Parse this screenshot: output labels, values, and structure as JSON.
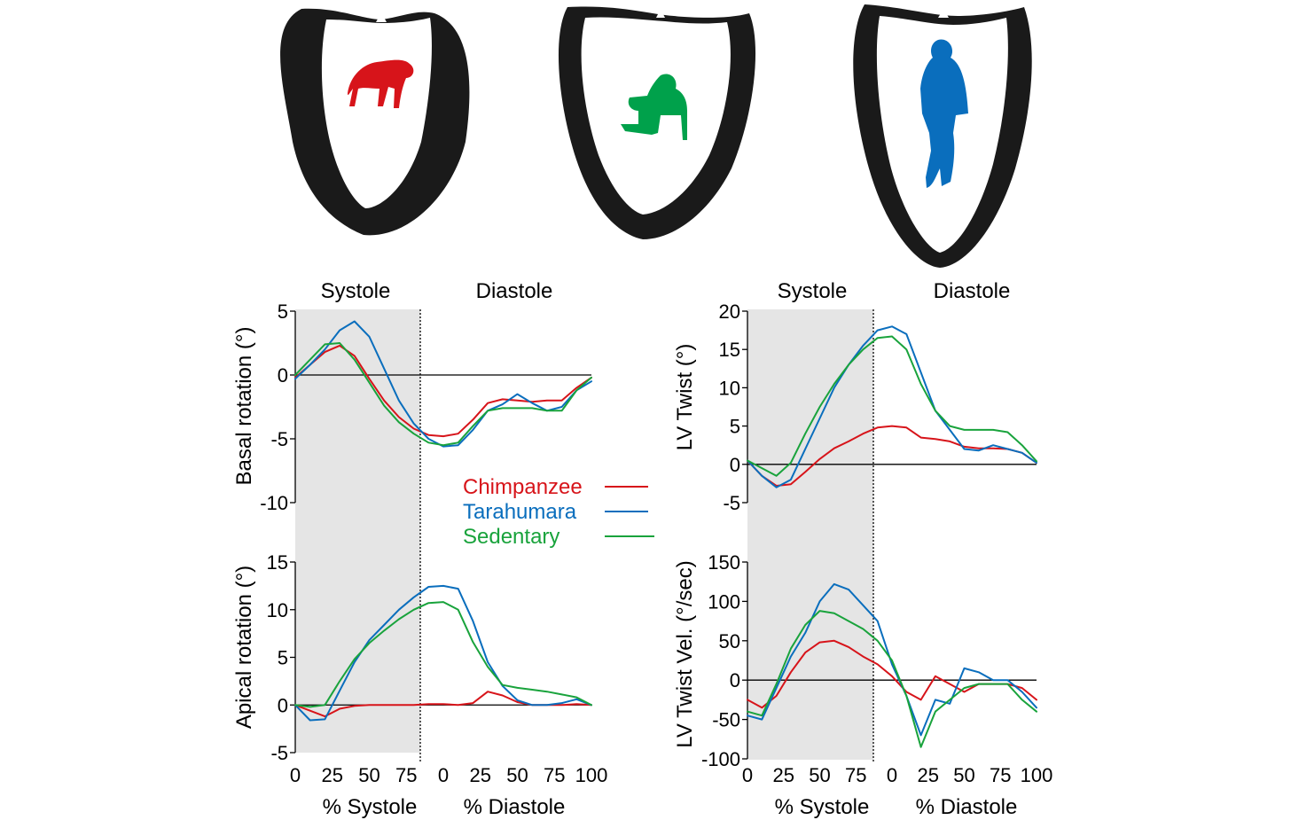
{
  "phases": {
    "systole": "Systole",
    "diastole": "Diastole"
  },
  "figures": [
    {
      "name": "chimpanzee-figure",
      "color": "#d7141a"
    },
    {
      "name": "sitting-person-figure",
      "color": "#00a14b"
    },
    {
      "name": "standing-runner-figure",
      "color": "#0a6ebd"
    }
  ],
  "legend": [
    {
      "label": "Chimpanzee",
      "color": "#d7141a"
    },
    {
      "label": "Tarahumara",
      "color": "#0a6ebd"
    },
    {
      "label": "Sedentary",
      "color": "#19a33c"
    }
  ],
  "x_axis": {
    "ticks_systole": [
      "0",
      "25",
      "50",
      "75"
    ],
    "ticks_diastole": [
      "0",
      "25",
      "50",
      "75",
      "100"
    ],
    "label_systole": "% Systole",
    "label_diastole": "% Diastole"
  },
  "chart_data": [
    {
      "type": "line",
      "ylabel": "Basal rotation (°)",
      "ylim": [
        -10,
        5
      ],
      "yticks": [
        "5",
        "0",
        "-5",
        "-10"
      ],
      "x": "0-100 % systole then 0-100 % diastole",
      "series": [
        {
          "name": "Chimpanzee",
          "points": [
            [
              0,
              -0.2
            ],
            [
              10,
              0.8
            ],
            [
              20,
              1.8
            ],
            [
              30,
              2.3
            ],
            [
              40,
              1.5
            ],
            [
              50,
              -0.3
            ],
            [
              60,
              -2.0
            ],
            [
              70,
              -3.3
            ],
            [
              80,
              -4.2
            ],
            [
              90,
              -4.7
            ],
            [
              100,
              -4.8
            ],
            [
              110,
              -4.6
            ],
            [
              120,
              -3.5
            ],
            [
              130,
              -2.2
            ],
            [
              140,
              -1.9
            ],
            [
              150,
              -2.0
            ],
            [
              160,
              -2.1
            ],
            [
              170,
              -2.0
            ],
            [
              180,
              -2.0
            ],
            [
              190,
              -1.0
            ],
            [
              200,
              -0.2
            ]
          ]
        },
        {
          "name": "Tarahumara",
          "points": [
            [
              0,
              -0.3
            ],
            [
              10,
              0.8
            ],
            [
              20,
              2.0
            ],
            [
              30,
              3.5
            ],
            [
              40,
              4.2
            ],
            [
              50,
              3.0
            ],
            [
              60,
              0.5
            ],
            [
              70,
              -2.0
            ],
            [
              80,
              -3.8
            ],
            [
              90,
              -5.0
            ],
            [
              100,
              -5.6
            ],
            [
              110,
              -5.5
            ],
            [
              120,
              -4.3
            ],
            [
              130,
              -2.8
            ],
            [
              140,
              -2.3
            ],
            [
              150,
              -1.5
            ],
            [
              160,
              -2.2
            ],
            [
              170,
              -2.8
            ],
            [
              180,
              -2.5
            ],
            [
              190,
              -1.2
            ],
            [
              200,
              -0.5
            ]
          ]
        },
        {
          "name": "Sedentary",
          "points": [
            [
              0,
              0
            ],
            [
              10,
              1.2
            ],
            [
              20,
              2.4
            ],
            [
              30,
              2.5
            ],
            [
              40,
              1.2
            ],
            [
              50,
              -0.6
            ],
            [
              60,
              -2.4
            ],
            [
              70,
              -3.7
            ],
            [
              80,
              -4.6
            ],
            [
              90,
              -5.3
            ],
            [
              100,
              -5.5
            ],
            [
              110,
              -5.3
            ],
            [
              120,
              -4.0
            ],
            [
              130,
              -2.8
            ],
            [
              140,
              -2.6
            ],
            [
              150,
              -2.6
            ],
            [
              160,
              -2.6
            ],
            [
              170,
              -2.8
            ],
            [
              180,
              -2.8
            ],
            [
              190,
              -1.2
            ],
            [
              200,
              -0.2
            ]
          ]
        }
      ]
    },
    {
      "type": "line",
      "ylabel": "Apical rotation (°)",
      "ylim": [
        -5,
        15
      ],
      "yticks": [
        "15",
        "10",
        "5",
        "0",
        "-5"
      ],
      "series": [
        {
          "name": "Chimpanzee",
          "points": [
            [
              0,
              0
            ],
            [
              10,
              -0.6
            ],
            [
              20,
              -1.2
            ],
            [
              30,
              -0.4
            ],
            [
              40,
              -0.1
            ],
            [
              50,
              0
            ],
            [
              60,
              0
            ],
            [
              70,
              0
            ],
            [
              80,
              0
            ],
            [
              90,
              0.1
            ],
            [
              100,
              0.1
            ],
            [
              110,
              0
            ],
            [
              120,
              0.2
            ],
            [
              130,
              1.4
            ],
            [
              140,
              1.0
            ],
            [
              150,
              0.3
            ],
            [
              160,
              0
            ],
            [
              170,
              0
            ],
            [
              180,
              0
            ],
            [
              190,
              0.1
            ],
            [
              200,
              0
            ]
          ]
        },
        {
          "name": "Tarahumara",
          "points": [
            [
              0,
              0
            ],
            [
              10,
              -1.6
            ],
            [
              20,
              -1.5
            ],
            [
              30,
              1.5
            ],
            [
              40,
              4.5
            ],
            [
              50,
              6.8
            ],
            [
              60,
              8.4
            ],
            [
              70,
              10.0
            ],
            [
              80,
              11.3
            ],
            [
              90,
              12.4
            ],
            [
              100,
              12.5
            ],
            [
              110,
              12.2
            ],
            [
              120,
              8.8
            ],
            [
              130,
              4.5
            ],
            [
              140,
              2.0
            ],
            [
              150,
              0.5
            ],
            [
              160,
              0
            ],
            [
              170,
              0
            ],
            [
              180,
              0.2
            ],
            [
              190,
              0.6
            ],
            [
              200,
              0
            ]
          ]
        },
        {
          "name": "Sedentary",
          "points": [
            [
              0,
              0
            ],
            [
              10,
              -0.2
            ],
            [
              20,
              0
            ],
            [
              30,
              2.5
            ],
            [
              40,
              4.8
            ],
            [
              50,
              6.5
            ],
            [
              60,
              7.8
            ],
            [
              70,
              9.0
            ],
            [
              80,
              10.0
            ],
            [
              90,
              10.7
            ],
            [
              100,
              10.8
            ],
            [
              110,
              10.0
            ],
            [
              120,
              6.6
            ],
            [
              130,
              4.0
            ],
            [
              140,
              2.1
            ],
            [
              150,
              1.8
            ],
            [
              160,
              1.6
            ],
            [
              170,
              1.4
            ],
            [
              180,
              1.1
            ],
            [
              190,
              0.8
            ],
            [
              200,
              0
            ]
          ]
        }
      ]
    },
    {
      "type": "line",
      "ylabel": "LV Twist (°)",
      "ylim": [
        -5,
        20
      ],
      "yticks": [
        "20",
        "15",
        "10",
        "5",
        "0",
        "-5"
      ],
      "series": [
        {
          "name": "Chimpanzee",
          "points": [
            [
              0,
              0.5
            ],
            [
              10,
              -1.5
            ],
            [
              20,
              -2.8
            ],
            [
              30,
              -2.6
            ],
            [
              40,
              -1.0
            ],
            [
              50,
              0.7
            ],
            [
              60,
              2.1
            ],
            [
              70,
              3.0
            ],
            [
              80,
              4.0
            ],
            [
              90,
              4.8
            ],
            [
              100,
              5.0
            ],
            [
              110,
              4.8
            ],
            [
              120,
              3.5
            ],
            [
              130,
              3.3
            ],
            [
              140,
              3.0
            ],
            [
              150,
              2.3
            ],
            [
              160,
              2.1
            ],
            [
              170,
              2.1
            ],
            [
              180,
              2.0
            ],
            [
              190,
              1.5
            ],
            [
              200,
              0.2
            ]
          ]
        },
        {
          "name": "Tarahumara",
          "points": [
            [
              0,
              0.5
            ],
            [
              10,
              -1.5
            ],
            [
              20,
              -3.0
            ],
            [
              30,
              -2.0
            ],
            [
              40,
              2.0
            ],
            [
              50,
              6.0
            ],
            [
              60,
              10.0
            ],
            [
              70,
              13.0
            ],
            [
              80,
              15.5
            ],
            [
              90,
              17.5
            ],
            [
              100,
              18.0
            ],
            [
              110,
              17.0
            ],
            [
              120,
              12.0
            ],
            [
              130,
              7.0
            ],
            [
              140,
              4.5
            ],
            [
              150,
              2.0
            ],
            [
              160,
              1.8
            ],
            [
              170,
              2.5
            ],
            [
              180,
              2.0
            ],
            [
              190,
              1.5
            ],
            [
              200,
              0.2
            ]
          ]
        },
        {
          "name": "Sedentary",
          "points": [
            [
              0,
              0.5
            ],
            [
              10,
              -0.5
            ],
            [
              20,
              -1.5
            ],
            [
              30,
              0.2
            ],
            [
              40,
              4.0
            ],
            [
              50,
              7.5
            ],
            [
              60,
              10.5
            ],
            [
              70,
              13.0
            ],
            [
              80,
              15.0
            ],
            [
              90,
              16.5
            ],
            [
              100,
              16.7
            ],
            [
              110,
              15.0
            ],
            [
              120,
              10.5
            ],
            [
              130,
              7.0
            ],
            [
              140,
              5.0
            ],
            [
              150,
              4.5
            ],
            [
              160,
              4.5
            ],
            [
              170,
              4.5
            ],
            [
              180,
              4.2
            ],
            [
              190,
              2.5
            ],
            [
              200,
              0.4
            ]
          ]
        }
      ]
    },
    {
      "type": "line",
      "ylabel": "LV Twist Vel.  (°/sec)",
      "ylim": [
        -100,
        150
      ],
      "yticks": [
        "150",
        "100",
        "50",
        "0",
        "-50",
        "-100"
      ],
      "series": [
        {
          "name": "Chimpanzee",
          "points": [
            [
              0,
              -25
            ],
            [
              10,
              -35
            ],
            [
              20,
              -20
            ],
            [
              30,
              10
            ],
            [
              40,
              35
            ],
            [
              50,
              48
            ],
            [
              60,
              50
            ],
            [
              70,
              42
            ],
            [
              80,
              30
            ],
            [
              90,
              20
            ],
            [
              100,
              5
            ],
            [
              110,
              -15
            ],
            [
              120,
              -25
            ],
            [
              130,
              5
            ],
            [
              140,
              -5
            ],
            [
              150,
              -15
            ],
            [
              160,
              -5
            ],
            [
              170,
              -5
            ],
            [
              180,
              -5
            ],
            [
              190,
              -10
            ],
            [
              200,
              -25
            ]
          ]
        },
        {
          "name": "Tarahumara",
          "points": [
            [
              0,
              -45
            ],
            [
              10,
              -50
            ],
            [
              20,
              -10
            ],
            [
              30,
              30
            ],
            [
              40,
              60
            ],
            [
              50,
              100
            ],
            [
              60,
              122
            ],
            [
              70,
              115
            ],
            [
              80,
              95
            ],
            [
              90,
              75
            ],
            [
              100,
              20
            ],
            [
              110,
              -20
            ],
            [
              120,
              -70
            ],
            [
              130,
              -25
            ],
            [
              140,
              -30
            ],
            [
              150,
              15
            ],
            [
              160,
              10
            ],
            [
              170,
              0
            ],
            [
              180,
              0
            ],
            [
              190,
              -15
            ],
            [
              200,
              -35
            ]
          ]
        },
        {
          "name": "Sedentary",
          "points": [
            [
              0,
              -40
            ],
            [
              10,
              -45
            ],
            [
              20,
              -5
            ],
            [
              30,
              40
            ],
            [
              40,
              70
            ],
            [
              50,
              88
            ],
            [
              60,
              85
            ],
            [
              70,
              75
            ],
            [
              80,
              65
            ],
            [
              90,
              50
            ],
            [
              100,
              25
            ],
            [
              110,
              -20
            ],
            [
              120,
              -85
            ],
            [
              130,
              -40
            ],
            [
              140,
              -25
            ],
            [
              150,
              -10
            ],
            [
              160,
              -5
            ],
            [
              170,
              -5
            ],
            [
              180,
              -5
            ],
            [
              190,
              -25
            ],
            [
              200,
              -40
            ]
          ]
        }
      ]
    }
  ]
}
